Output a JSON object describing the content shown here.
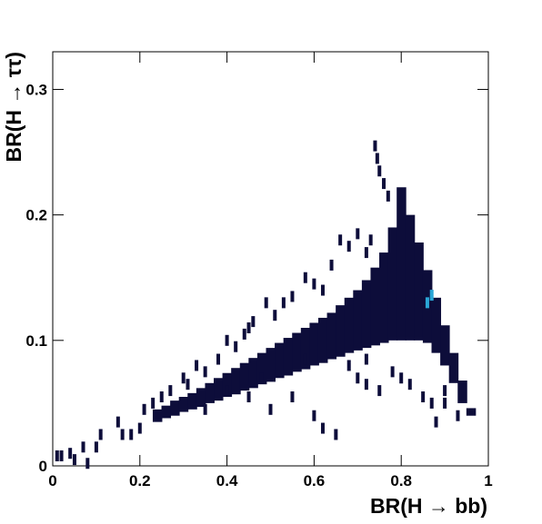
{
  "chart_data": {
    "type": "hist2d",
    "x_label": "BR(H → bb)",
    "y_label": "BR(H → ττ)",
    "xlim": [
      0,
      1
    ],
    "xticks": [
      0,
      0.2,
      0.4,
      0.6,
      0.8,
      1
    ],
    "ylim": [
      0,
      0.33
    ],
    "yticks": [
      0,
      0.1,
      0.2,
      0.3
    ],
    "core": {
      "color": "#0d0d3a",
      "x": [
        0.24,
        0.26,
        0.28,
        0.3,
        0.32,
        0.34,
        0.36,
        0.38,
        0.4,
        0.42,
        0.44,
        0.46,
        0.48,
        0.5,
        0.52,
        0.54,
        0.56,
        0.58,
        0.6,
        0.62,
        0.64,
        0.66,
        0.68,
        0.7,
        0.72,
        0.74,
        0.76,
        0.78,
        0.8,
        0.82,
        0.84,
        0.86,
        0.88,
        0.9,
        0.92,
        0.94,
        0.96
      ],
      "ylow": [
        0.035,
        0.038,
        0.04,
        0.043,
        0.045,
        0.047,
        0.05,
        0.052,
        0.055,
        0.057,
        0.06,
        0.062,
        0.065,
        0.067,
        0.07,
        0.072,
        0.075,
        0.077,
        0.08,
        0.082,
        0.085,
        0.087,
        0.09,
        0.092,
        0.094,
        0.096,
        0.098,
        0.1,
        0.1,
        0.1,
        0.1,
        0.098,
        0.09,
        0.08,
        0.066,
        0.05,
        0.04
      ],
      "yhigh": [
        0.045,
        0.048,
        0.052,
        0.055,
        0.058,
        0.062,
        0.066,
        0.07,
        0.074,
        0.078,
        0.082,
        0.086,
        0.09,
        0.094,
        0.098,
        0.102,
        0.106,
        0.11,
        0.114,
        0.118,
        0.122,
        0.128,
        0.134,
        0.14,
        0.148,
        0.158,
        0.17,
        0.19,
        0.222,
        0.2,
        0.178,
        0.156,
        0.134,
        0.112,
        0.09,
        0.068,
        0.046
      ]
    },
    "sparse": {
      "color": "#0d0d3a",
      "x": [
        0.01,
        0.02,
        0.04,
        0.05,
        0.07,
        0.08,
        0.1,
        0.11,
        0.15,
        0.16,
        0.18,
        0.2,
        0.21,
        0.23,
        0.25,
        0.27,
        0.3,
        0.31,
        0.33,
        0.35,
        0.38,
        0.4,
        0.42,
        0.44,
        0.45,
        0.46,
        0.49,
        0.51,
        0.53,
        0.55,
        0.58,
        0.6,
        0.62,
        0.64,
        0.66,
        0.68,
        0.7,
        0.72,
        0.73,
        0.74,
        0.745,
        0.75,
        0.76,
        0.77,
        0.5,
        0.55,
        0.6,
        0.62,
        0.65,
        0.7,
        0.72,
        0.75,
        0.78,
        0.8,
        0.82,
        0.85,
        0.87,
        0.9,
        0.93,
        0.35,
        0.4,
        0.45,
        0.48,
        0.58,
        0.68,
        0.72,
        0.88,
        0.9
      ],
      "y": [
        0.008,
        0.008,
        0.01,
        0.005,
        0.015,
        0.002,
        0.015,
        0.025,
        0.035,
        0.025,
        0.025,
        0.03,
        0.045,
        0.05,
        0.055,
        0.06,
        0.07,
        0.065,
        0.08,
        0.075,
        0.085,
        0.1,
        0.095,
        0.105,
        0.11,
        0.115,
        0.13,
        0.12,
        0.13,
        0.135,
        0.15,
        0.145,
        0.14,
        0.16,
        0.18,
        0.175,
        0.185,
        0.17,
        0.18,
        0.255,
        0.245,
        0.235,
        0.225,
        0.215,
        0.045,
        0.055,
        0.04,
        0.03,
        0.025,
        0.07,
        0.065,
        0.06,
        0.075,
        0.07,
        0.065,
        0.055,
        0.05,
        0.06,
        0.04,
        0.045,
        0.06,
        0.055,
        0.07,
        0.085,
        0.08,
        0.085,
        0.035,
        0.05
      ]
    },
    "highlight": {
      "color": "#2aa6d6",
      "x": [
        0.86,
        0.87
      ],
      "y": [
        0.13,
        0.136
      ]
    }
  }
}
